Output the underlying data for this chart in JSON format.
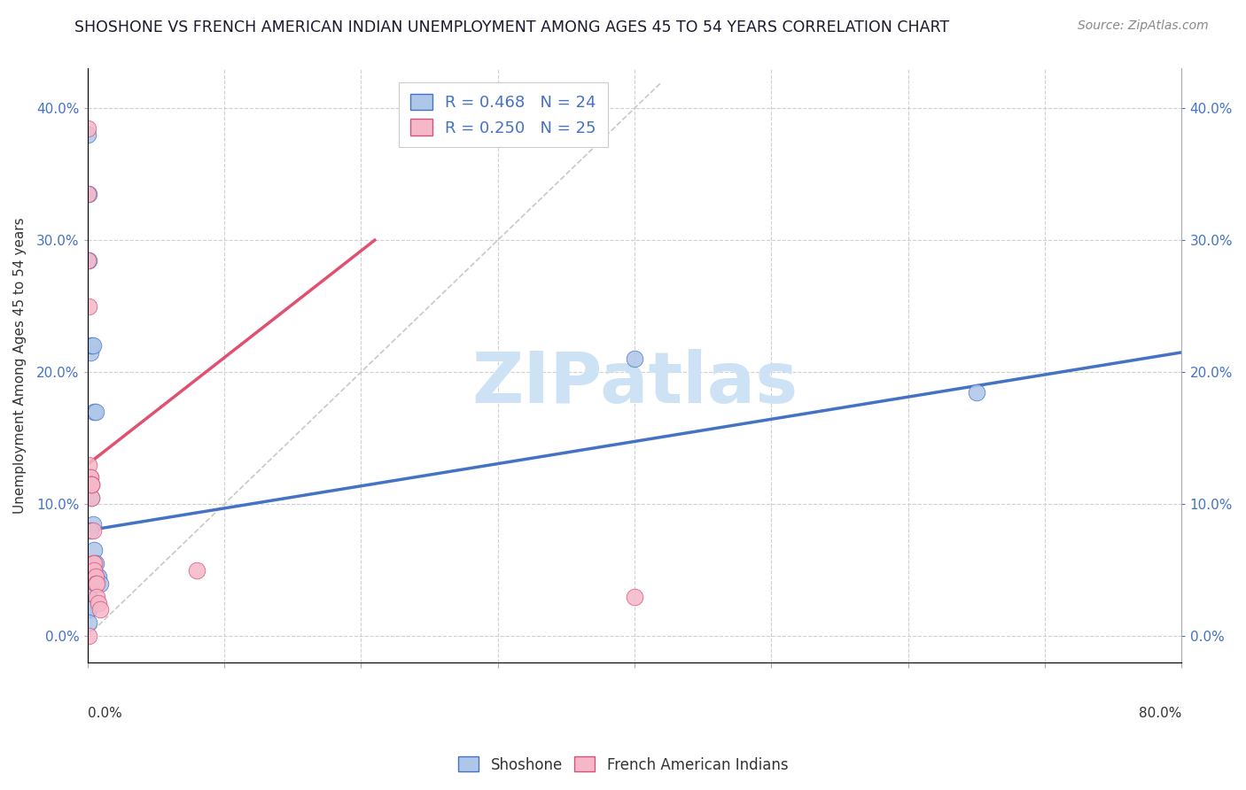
{
  "title": "SHOSHONE VS FRENCH AMERICAN INDIAN UNEMPLOYMENT AMONG AGES 45 TO 54 YEARS CORRELATION CHART",
  "source": "Source: ZipAtlas.com",
  "ylabel": "Unemployment Among Ages 45 to 54 years",
  "ytick_labels": [
    "0.0%",
    "10.0%",
    "20.0%",
    "30.0%",
    "40.0%"
  ],
  "ytick_vals": [
    0.0,
    0.1,
    0.2,
    0.3,
    0.4
  ],
  "xtick_labels": [
    "0.0%",
    "",
    "",
    "",
    "",
    "",
    "",
    "",
    "80.0%"
  ],
  "xlim": [
    0.0,
    0.8
  ],
  "ylim": [
    -0.02,
    0.43
  ],
  "shoshone_color": "#aec6e8",
  "french_color": "#f5b8c8",
  "shoshone_edge_color": "#4472c4",
  "french_edge_color": "#d94f7a",
  "shoshone_line_color": "#4472c4",
  "french_line_color": "#e05070",
  "diagonal_color": "#c8c8c8",
  "watermark_text": "ZIPatlas",
  "watermark_color": "#cde3f5",
  "legend1_label": "R = 0.468   N = 24",
  "legend2_label": "R = 0.250   N = 25",
  "shoshone_line": [
    0.0,
    0.08,
    0.8,
    0.215
  ],
  "french_line": [
    0.0,
    0.13,
    0.21,
    0.3
  ],
  "shoshone_points": [
    [
      0.0,
      0.38
    ],
    [
      0.001,
      0.335
    ],
    [
      0.001,
      0.285
    ],
    [
      0.002,
      0.215
    ],
    [
      0.003,
      0.22
    ],
    [
      0.004,
      0.22
    ],
    [
      0.005,
      0.17
    ],
    [
      0.006,
      0.17
    ],
    [
      0.003,
      0.105
    ],
    [
      0.004,
      0.085
    ],
    [
      0.002,
      0.08
    ],
    [
      0.005,
      0.065
    ],
    [
      0.006,
      0.055
    ],
    [
      0.007,
      0.045
    ],
    [
      0.008,
      0.045
    ],
    [
      0.009,
      0.04
    ],
    [
      0.002,
      0.04
    ],
    [
      0.001,
      0.035
    ],
    [
      0.001,
      0.03
    ],
    [
      0.001,
      0.02
    ],
    [
      0.001,
      0.02
    ],
    [
      0.001,
      0.01
    ],
    [
      0.4,
      0.21
    ],
    [
      0.65,
      0.185
    ]
  ],
  "french_points": [
    [
      0.0,
      0.385
    ],
    [
      0.0,
      0.335
    ],
    [
      0.0,
      0.285
    ],
    [
      0.001,
      0.25
    ],
    [
      0.001,
      0.13
    ],
    [
      0.002,
      0.12
    ],
    [
      0.002,
      0.12
    ],
    [
      0.002,
      0.115
    ],
    [
      0.003,
      0.115
    ],
    [
      0.003,
      0.105
    ],
    [
      0.003,
      0.115
    ],
    [
      0.003,
      0.115
    ],
    [
      0.004,
      0.08
    ],
    [
      0.004,
      0.055
    ],
    [
      0.005,
      0.055
    ],
    [
      0.005,
      0.05
    ],
    [
      0.006,
      0.045
    ],
    [
      0.006,
      0.04
    ],
    [
      0.007,
      0.04
    ],
    [
      0.007,
      0.03
    ],
    [
      0.008,
      0.025
    ],
    [
      0.009,
      0.02
    ],
    [
      0.001,
      0.0
    ],
    [
      0.08,
      0.05
    ],
    [
      0.4,
      0.03
    ]
  ]
}
